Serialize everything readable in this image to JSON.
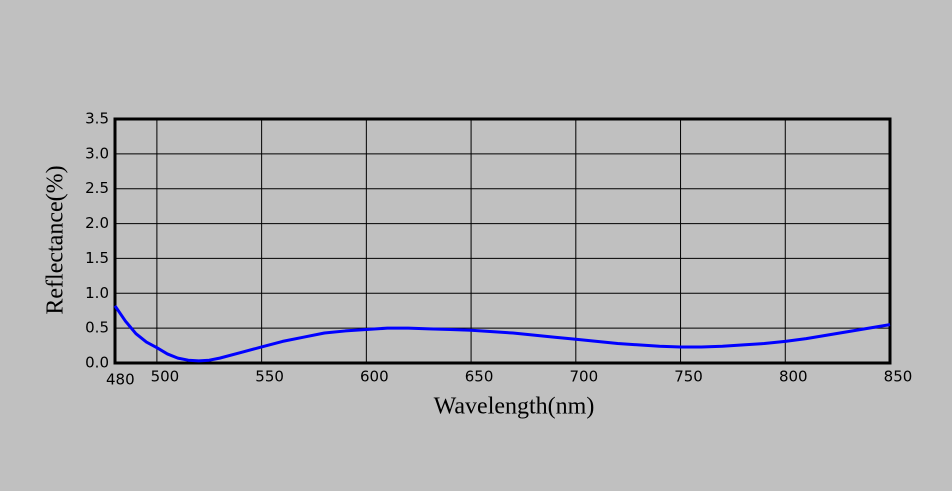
{
  "chart_data": {
    "type": "line",
    "x_label": "Wavelength(nm)",
    "y_label": "Reflectance(%)",
    "xlim": [
      480,
      850
    ],
    "ylim": [
      0,
      3.5
    ],
    "xticks": [
      480,
      500,
      550,
      600,
      650,
      700,
      750,
      800,
      850
    ],
    "yticks": [
      {
        "value": 0,
        "label": "0.0"
      },
      0.5,
      {
        "value": 1,
        "label": "1.0"
      },
      1.5,
      {
        "value": 2,
        "label": "2.0"
      },
      2.5,
      {
        "value": 3,
        "label": "3.0"
      },
      3.5
    ],
    "grid": true,
    "series": [
      {
        "color": "#0000ff",
        "x": [
          480,
          485,
          490,
          495,
          500,
          505,
          510,
          515,
          520,
          525,
          530,
          540,
          550,
          560,
          570,
          580,
          590,
          600,
          610,
          620,
          630,
          640,
          650,
          660,
          670,
          680,
          690,
          700,
          710,
          720,
          730,
          740,
          750,
          760,
          770,
          780,
          790,
          800,
          810,
          820,
          830,
          840,
          850
        ],
        "values": [
          0.82,
          0.6,
          0.42,
          0.3,
          0.22,
          0.13,
          0.07,
          0.04,
          0.03,
          0.04,
          0.07,
          0.15,
          0.23,
          0.31,
          0.37,
          0.43,
          0.46,
          0.48,
          0.5,
          0.5,
          0.49,
          0.48,
          0.47,
          0.45,
          0.43,
          0.4,
          0.37,
          0.34,
          0.31,
          0.28,
          0.26,
          0.24,
          0.23,
          0.23,
          0.24,
          0.26,
          0.28,
          0.31,
          0.35,
          0.4,
          0.45,
          0.5,
          0.55
        ]
      }
    ]
  }
}
